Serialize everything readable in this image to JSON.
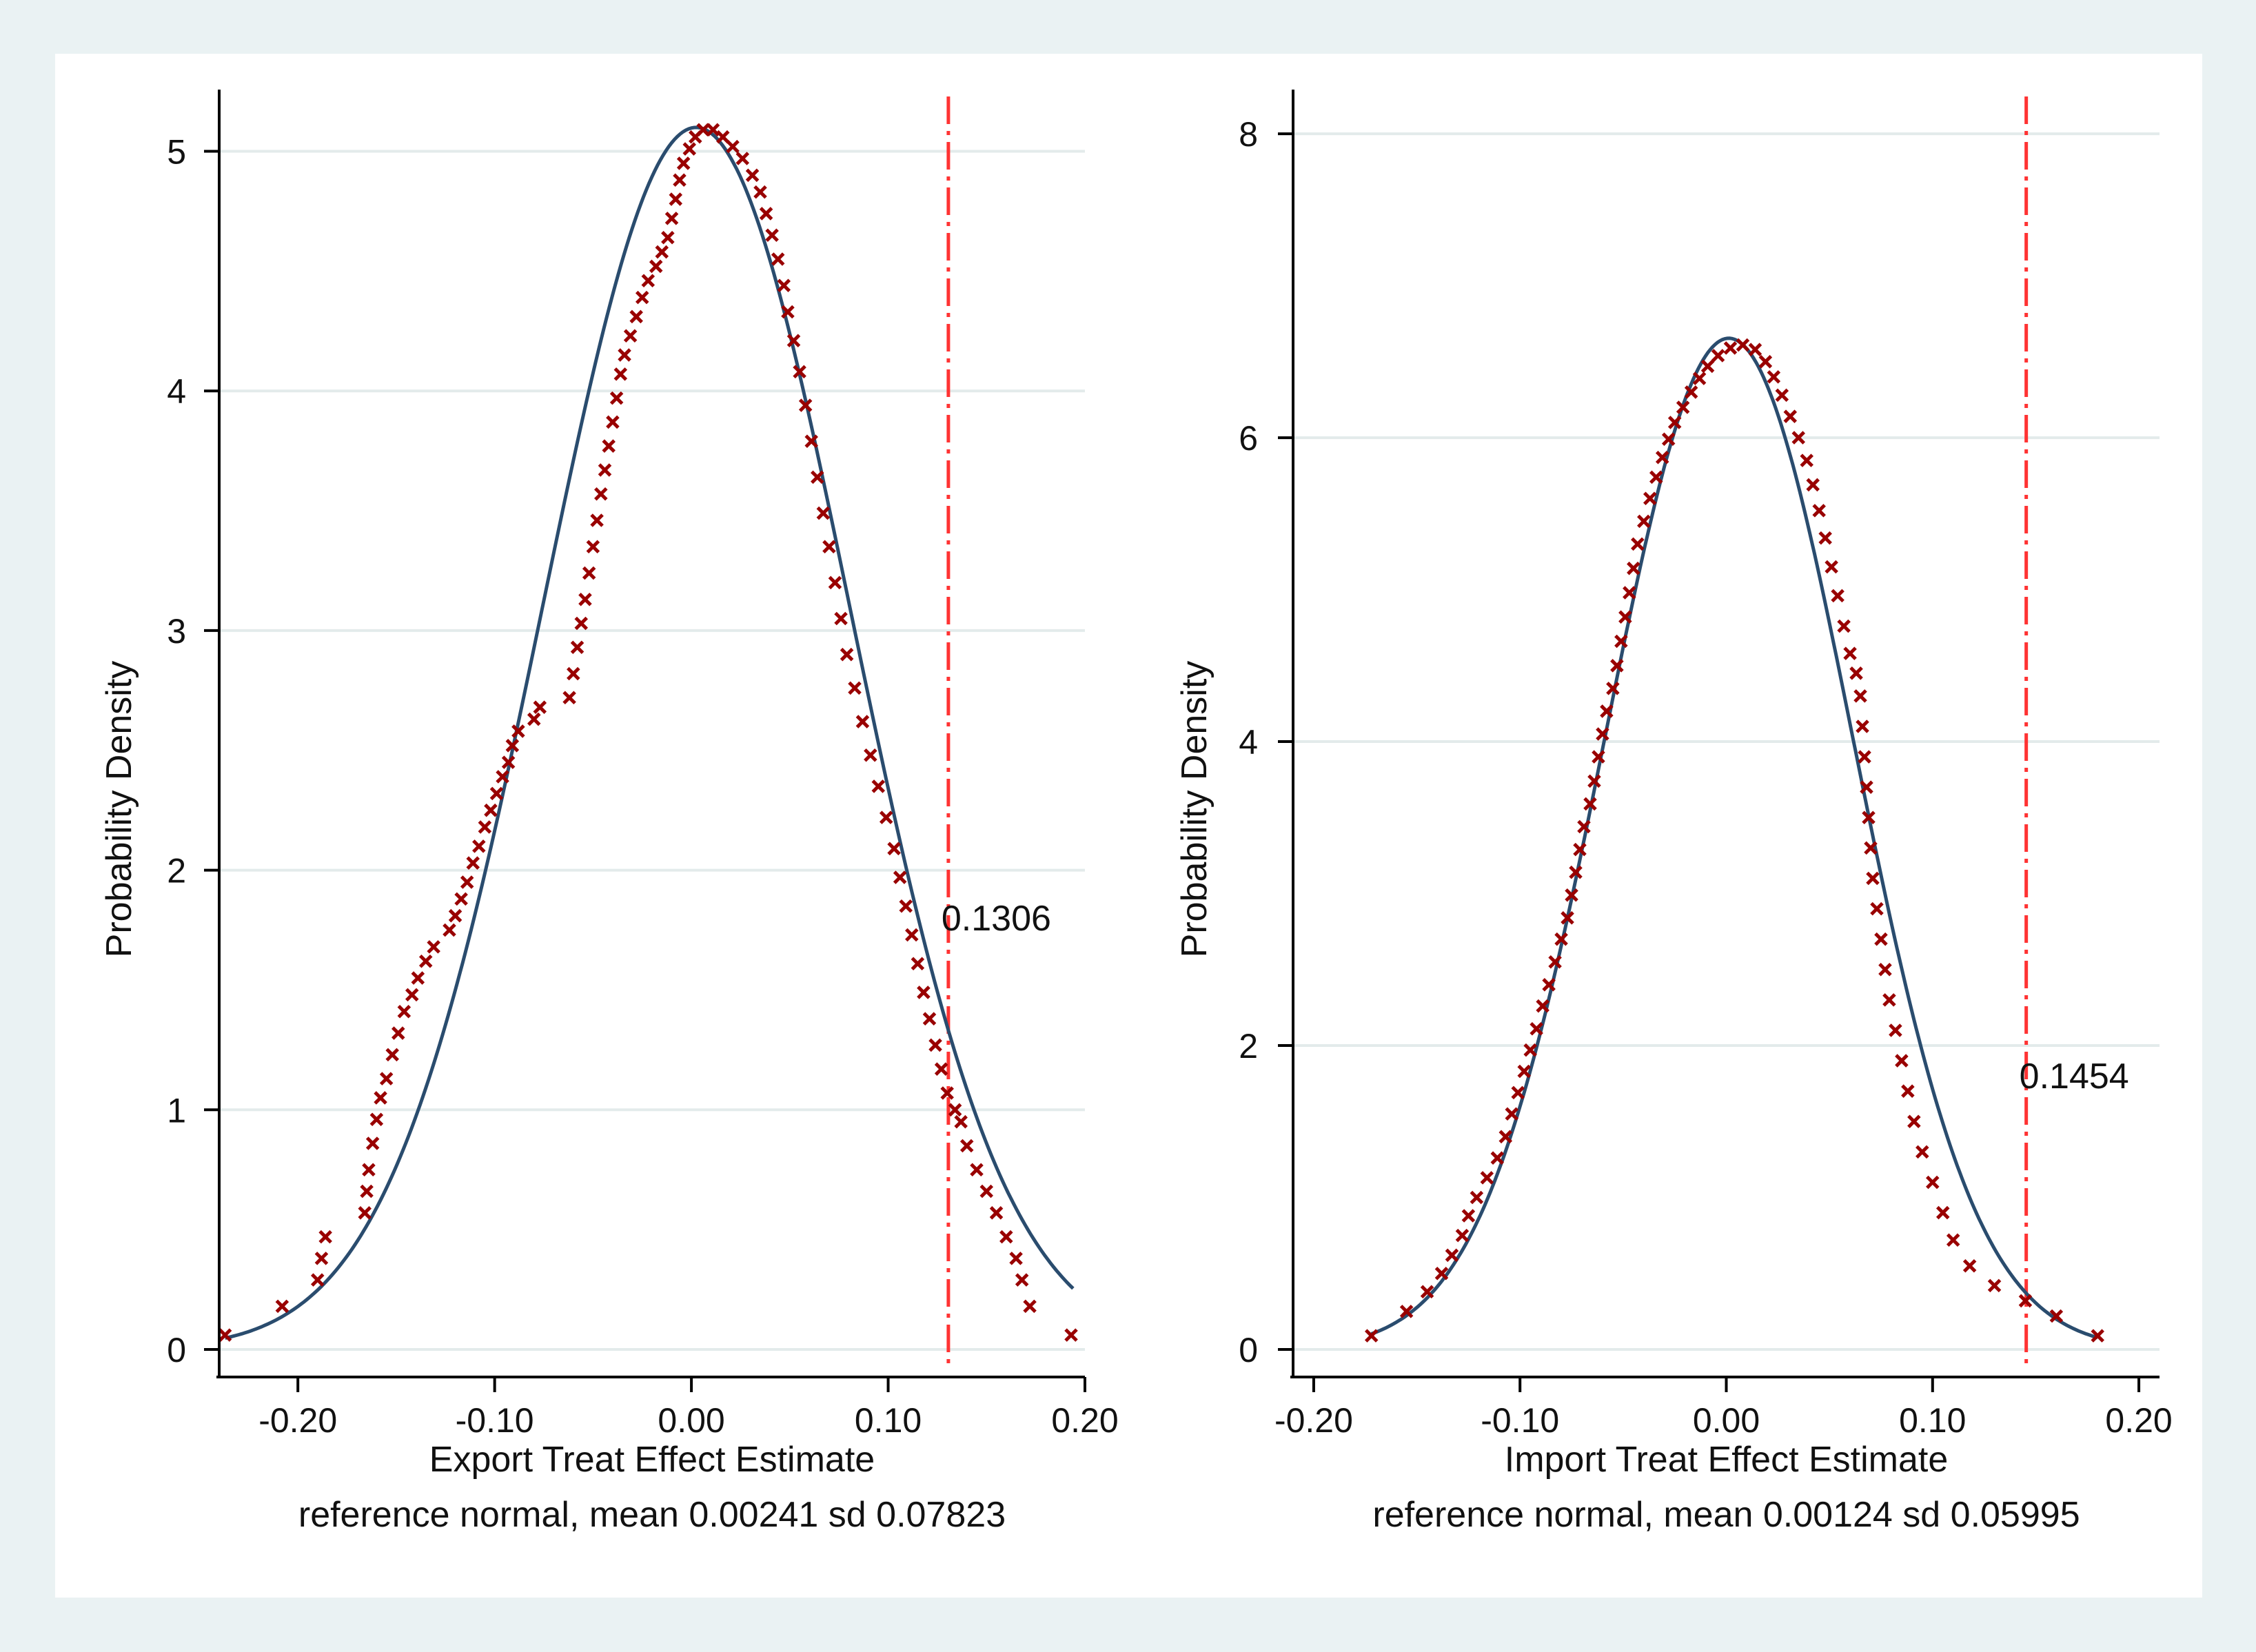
{
  "colors": {
    "page_bg": "#eaf2f3",
    "panel_bg": "#ffffff",
    "grid": "#e3ebeb",
    "axis": "#000000",
    "normal_curve": "#2a4c6e",
    "markers": "#990000",
    "reference_line": "#ff3333"
  },
  "chart_data": [
    {
      "type": "scatter",
      "title": "",
      "xlabel": "Export Treat Effect Estimate",
      "ylabel": "Probability Density",
      "note": "reference normal, mean 0.00241 sd 0.07823",
      "normal_mean": 0.00241,
      "normal_sd": 0.07823,
      "normal_x_range": [
        -0.237,
        0.194
      ],
      "xlim": [
        -0.24,
        0.2
      ],
      "ylim": [
        0,
        5.2
      ],
      "xticks": [
        -0.2,
        -0.1,
        0.0,
        0.1,
        0.2
      ],
      "xtick_labels": [
        "-0.20",
        "-0.10",
        "0.00",
        "0.10",
        "0.20"
      ],
      "yticks": [
        0,
        1,
        2,
        3,
        4,
        5
      ],
      "ytick_labels": [
        "0",
        "1",
        "2",
        "3",
        "4",
        "5"
      ],
      "grid": true,
      "reference_line": {
        "x": 0.1306,
        "label": "0.1306",
        "label_y": 1.8
      },
      "kde_points": [
        [
          -0.237,
          0.06
        ],
        [
          -0.208,
          0.18
        ],
        [
          -0.19,
          0.29
        ],
        [
          -0.188,
          0.38
        ],
        [
          -0.186,
          0.47
        ],
        [
          -0.166,
          0.57
        ],
        [
          -0.165,
          0.66
        ],
        [
          -0.164,
          0.75
        ],
        [
          -0.162,
          0.86
        ],
        [
          -0.16,
          0.96
        ],
        [
          -0.158,
          1.05
        ],
        [
          -0.155,
          1.13
        ],
        [
          -0.152,
          1.23
        ],
        [
          -0.149,
          1.32
        ],
        [
          -0.146,
          1.41
        ],
        [
          -0.142,
          1.48
        ],
        [
          -0.139,
          1.55
        ],
        [
          -0.135,
          1.62
        ],
        [
          -0.131,
          1.68
        ],
        [
          -0.123,
          1.75
        ],
        [
          -0.12,
          1.81
        ],
        [
          -0.117,
          1.88
        ],
        [
          -0.114,
          1.95
        ],
        [
          -0.111,
          2.03
        ],
        [
          -0.108,
          2.1
        ],
        [
          -0.105,
          2.18
        ],
        [
          -0.102,
          2.25
        ],
        [
          -0.099,
          2.32
        ],
        [
          -0.096,
          2.39
        ],
        [
          -0.093,
          2.45
        ],
        [
          -0.091,
          2.52
        ],
        [
          -0.088,
          2.58
        ],
        [
          -0.08,
          2.63
        ],
        [
          -0.077,
          2.68
        ],
        [
          -0.062,
          2.72
        ],
        [
          -0.06,
          2.82
        ],
        [
          -0.058,
          2.93
        ],
        [
          -0.056,
          3.03
        ],
        [
          -0.054,
          3.13
        ],
        [
          -0.052,
          3.24
        ],
        [
          -0.05,
          3.35
        ],
        [
          -0.048,
          3.46
        ],
        [
          -0.046,
          3.57
        ],
        [
          -0.044,
          3.67
        ],
        [
          -0.042,
          3.77
        ],
        [
          -0.04,
          3.87
        ],
        [
          -0.038,
          3.97
        ],
        [
          -0.036,
          4.07
        ],
        [
          -0.034,
          4.15
        ],
        [
          -0.031,
          4.23
        ],
        [
          -0.028,
          4.31
        ],
        [
          -0.025,
          4.39
        ],
        [
          -0.022,
          4.46
        ],
        [
          -0.018,
          4.52
        ],
        [
          -0.015,
          4.58
        ],
        [
          -0.012,
          4.64
        ],
        [
          -0.01,
          4.72
        ],
        [
          -0.008,
          4.8
        ],
        [
          -0.006,
          4.88
        ],
        [
          -0.004,
          4.95
        ],
        [
          -0.001,
          5.01
        ],
        [
          0.002,
          5.06
        ],
        [
          0.006,
          5.09
        ],
        [
          0.011,
          5.09
        ],
        [
          0.016,
          5.06
        ],
        [
          0.021,
          5.02
        ],
        [
          0.026,
          4.97
        ],
        [
          0.031,
          4.9
        ],
        [
          0.035,
          4.83
        ],
        [
          0.038,
          4.74
        ],
        [
          0.041,
          4.65
        ],
        [
          0.044,
          4.55
        ],
        [
          0.047,
          4.44
        ],
        [
          0.049,
          4.33
        ],
        [
          0.052,
          4.21
        ],
        [
          0.055,
          4.08
        ],
        [
          0.058,
          3.94
        ],
        [
          0.061,
          3.79
        ],
        [
          0.064,
          3.64
        ],
        [
          0.067,
          3.49
        ],
        [
          0.07,
          3.35
        ],
        [
          0.073,
          3.2
        ],
        [
          0.076,
          3.05
        ],
        [
          0.079,
          2.9
        ],
        [
          0.083,
          2.76
        ],
        [
          0.087,
          2.62
        ],
        [
          0.091,
          2.48
        ],
        [
          0.095,
          2.35
        ],
        [
          0.099,
          2.22
        ],
        [
          0.103,
          2.09
        ],
        [
          0.106,
          1.97
        ],
        [
          0.109,
          1.85
        ],
        [
          0.112,
          1.73
        ],
        [
          0.115,
          1.61
        ],
        [
          0.118,
          1.49
        ],
        [
          0.121,
          1.38
        ],
        [
          0.124,
          1.27
        ],
        [
          0.127,
          1.17
        ],
        [
          0.13,
          1.07
        ],
        [
          0.134,
          1.0
        ],
        [
          0.137,
          0.95
        ],
        [
          0.14,
          0.85
        ],
        [
          0.145,
          0.75
        ],
        [
          0.15,
          0.66
        ],
        [
          0.155,
          0.57
        ],
        [
          0.16,
          0.47
        ],
        [
          0.165,
          0.38
        ],
        [
          0.168,
          0.29
        ],
        [
          0.172,
          0.18
        ],
        [
          0.193,
          0.06
        ]
      ]
    },
    {
      "type": "scatter",
      "title": "",
      "xlabel": "Import Treat Effect Estimate",
      "ylabel": "Probability Density",
      "note": "reference normal, mean 0.00124 sd 0.05995",
      "normal_mean": 0.00124,
      "normal_sd": 0.05995,
      "normal_x_range": [
        -0.172,
        0.18
      ],
      "xlim": [
        -0.21,
        0.21
      ],
      "ylim": [
        0,
        8.2
      ],
      "xticks": [
        -0.2,
        -0.1,
        0.0,
        0.1,
        0.2
      ],
      "xtick_labels": [
        "-0.20",
        "-0.10",
        "0.00",
        "0.10",
        "0.20"
      ],
      "yticks": [
        0,
        2,
        4,
        6,
        8
      ],
      "ytick_labels": [
        "0",
        "2",
        "4",
        "6",
        "8"
      ],
      "grid": true,
      "reference_line": {
        "x": 0.1454,
        "label": "0.1454",
        "label_y": 1.8
      },
      "kde_points": [
        [
          -0.172,
          0.09
        ],
        [
          -0.155,
          0.25
        ],
        [
          -0.145,
          0.38
        ],
        [
          -0.138,
          0.5
        ],
        [
          -0.133,
          0.62
        ],
        [
          -0.128,
          0.75
        ],
        [
          -0.125,
          0.88
        ],
        [
          -0.121,
          1.0
        ],
        [
          -0.116,
          1.13
        ],
        [
          -0.111,
          1.26
        ],
        [
          -0.107,
          1.4
        ],
        [
          -0.104,
          1.55
        ],
        [
          -0.101,
          1.69
        ],
        [
          -0.098,
          1.83
        ],
        [
          -0.095,
          1.97
        ],
        [
          -0.092,
          2.11
        ],
        [
          -0.089,
          2.26
        ],
        [
          -0.086,
          2.4
        ],
        [
          -0.083,
          2.55
        ],
        [
          -0.08,
          2.7
        ],
        [
          -0.077,
          2.84
        ],
        [
          -0.075,
          2.99
        ],
        [
          -0.073,
          3.14
        ],
        [
          -0.071,
          3.29
        ],
        [
          -0.069,
          3.44
        ],
        [
          -0.066,
          3.59
        ],
        [
          -0.064,
          3.74
        ],
        [
          -0.062,
          3.9
        ],
        [
          -0.06,
          4.05
        ],
        [
          -0.058,
          4.2
        ],
        [
          -0.055,
          4.35
        ],
        [
          -0.053,
          4.5
        ],
        [
          -0.051,
          4.66
        ],
        [
          -0.049,
          4.82
        ],
        [
          -0.047,
          4.98
        ],
        [
          -0.045,
          5.14
        ],
        [
          -0.043,
          5.3
        ],
        [
          -0.04,
          5.45
        ],
        [
          -0.037,
          5.6
        ],
        [
          -0.034,
          5.74
        ],
        [
          -0.031,
          5.87
        ],
        [
          -0.028,
          5.99
        ],
        [
          -0.025,
          6.1
        ],
        [
          -0.021,
          6.2
        ],
        [
          -0.017,
          6.3
        ],
        [
          -0.013,
          6.39
        ],
        [
          -0.009,
          6.47
        ],
        [
          -0.004,
          6.54
        ],
        [
          0.002,
          6.59
        ],
        [
          0.008,
          6.61
        ],
        [
          0.014,
          6.58
        ],
        [
          0.019,
          6.5
        ],
        [
          0.023,
          6.4
        ],
        [
          0.027,
          6.28
        ],
        [
          0.031,
          6.14
        ],
        [
          0.035,
          6.0
        ],
        [
          0.039,
          5.85
        ],
        [
          0.042,
          5.69
        ],
        [
          0.045,
          5.52
        ],
        [
          0.048,
          5.34
        ],
        [
          0.051,
          5.15
        ],
        [
          0.054,
          4.96
        ],
        [
          0.057,
          4.76
        ],
        [
          0.06,
          4.58
        ],
        [
          0.063,
          4.45
        ],
        [
          0.065,
          4.3
        ],
        [
          0.066,
          4.1
        ],
        [
          0.067,
          3.9
        ],
        [
          0.068,
          3.7
        ],
        [
          0.069,
          3.5
        ],
        [
          0.07,
          3.3
        ],
        [
          0.071,
          3.1
        ],
        [
          0.073,
          2.9
        ],
        [
          0.075,
          2.7
        ],
        [
          0.077,
          2.5
        ],
        [
          0.079,
          2.3
        ],
        [
          0.082,
          2.1
        ],
        [
          0.085,
          1.9
        ],
        [
          0.088,
          1.7
        ],
        [
          0.091,
          1.5
        ],
        [
          0.095,
          1.3
        ],
        [
          0.1,
          1.1
        ],
        [
          0.105,
          0.9
        ],
        [
          0.11,
          0.72
        ],
        [
          0.118,
          0.55
        ],
        [
          0.13,
          0.42
        ],
        [
          0.145,
          0.32
        ],
        [
          0.16,
          0.22
        ],
        [
          0.18,
          0.09
        ]
      ]
    }
  ]
}
